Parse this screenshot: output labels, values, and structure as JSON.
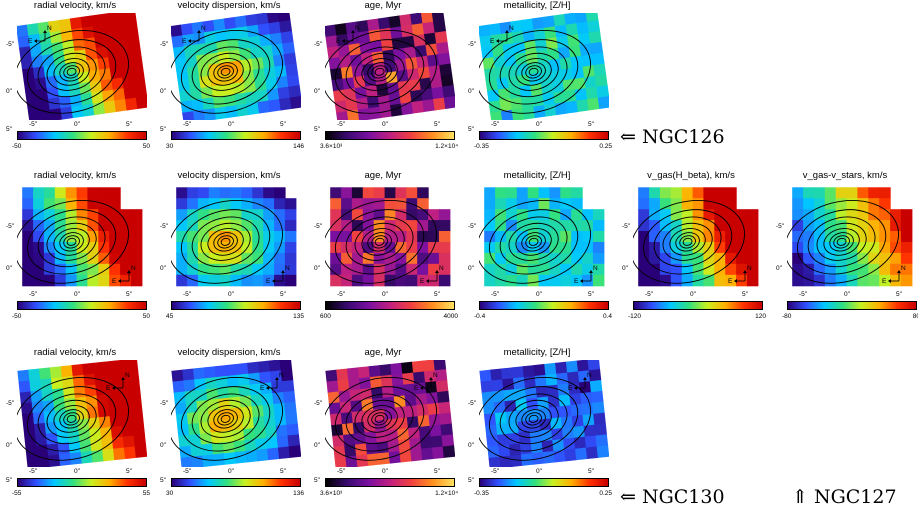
{
  "rows": [
    {
      "panels": [
        {
          "title": "radial velocity, km/s",
          "cmap": "jet",
          "min": "-50",
          "max": "50",
          "y_ticks": [
            "-5\"",
            "0\"",
            "5\""
          ],
          "x_ticks": [
            "-5\"",
            "0\"",
            "5\""
          ]
        },
        {
          "title": "velocity dispersion, km/s",
          "cmap": "jet",
          "min": "30",
          "max": "146",
          "y_ticks": [
            "-5\"",
            "0\"",
            "5\""
          ],
          "x_ticks": [
            "-5\"",
            "0\"",
            "5\""
          ]
        },
        {
          "title": "age, Myr",
          "cmap": "gnu",
          "min": "3.6×10³",
          "max": "1.2×10⁴",
          "y_ticks": [
            "-5\"",
            "0\"",
            "5\""
          ],
          "x_ticks": [
            "-5\"",
            "0\"",
            "5\""
          ]
        },
        {
          "title": "metallicity, [Z/H]",
          "cmap": "jet",
          "min": "-0.35",
          "max": "0.25",
          "y_ticks": [
            "-5\"",
            "0\"",
            "5\""
          ],
          "x_ticks": [
            "-5\"",
            "0\"",
            "5\""
          ]
        }
      ]
    },
    {
      "panels": [
        {
          "title": "radial velocity, km/s",
          "cmap": "jet",
          "min": "-50",
          "max": "50",
          "y_ticks": [
            "-5\"",
            "0\""
          ],
          "x_ticks": [
            "-5\"",
            "0\"",
            "5\""
          ]
        },
        {
          "title": "velocity dispersion, km/s",
          "cmap": "jet",
          "min": "45",
          "max": "135",
          "y_ticks": [
            "-5\"",
            "0\""
          ],
          "x_ticks": [
            "-5\"",
            "0\"",
            "5\""
          ]
        },
        {
          "title": "age, Myr",
          "cmap": "gnu",
          "min": "600",
          "max": "4000",
          "y_ticks": [
            "-5\"",
            "0\""
          ],
          "x_ticks": [
            "-5\"",
            "0\"",
            "5\""
          ]
        },
        {
          "title": "metallicity, [Z/H]",
          "cmap": "jet",
          "min": "-0.4",
          "max": "0.4",
          "y_ticks": [
            "-5\"",
            "0\""
          ],
          "x_ticks": [
            "-5\"",
            "0\"",
            "5\""
          ]
        },
        {
          "title": "v_gas(H_beta), km/s",
          "cmap": "jet",
          "min": "-120",
          "max": "120",
          "y_ticks": [
            "-5\"",
            "0\""
          ],
          "x_ticks": [
            "-5\"",
            "0\"",
            "5\""
          ]
        },
        {
          "title": "v_gas-v_stars, km/s",
          "cmap": "jet",
          "min": "-80",
          "max": "80",
          "y_ticks": [
            "-5\"",
            "0\""
          ],
          "x_ticks": [
            "-5\"",
            "0\"",
            "5\""
          ]
        }
      ]
    },
    {
      "panels": [
        {
          "title": "radial velocity, km/s",
          "cmap": "jet",
          "min": "-55",
          "max": "55",
          "y_ticks": [
            "-5\"",
            "0\"",
            "5\""
          ],
          "x_ticks": [
            "-5\"",
            "0\"",
            "5\""
          ]
        },
        {
          "title": "velocity dispersion, km/s",
          "cmap": "jet",
          "min": "30",
          "max": "136",
          "y_ticks": [
            "-5\"",
            "0\"",
            "5\""
          ],
          "x_ticks": [
            "-5\"",
            "0\"",
            "5\""
          ]
        },
        {
          "title": "age, Myr",
          "cmap": "gnu",
          "min": "3.6×10³",
          "max": "1.2×10⁴",
          "y_ticks": [
            "-5\"",
            "0\"",
            "5\""
          ],
          "x_ticks": [
            "-5\"",
            "0\"",
            "5\""
          ]
        },
        {
          "title": "metallicity, [Z/H]",
          "cmap": "jet",
          "min": "-0.35",
          "max": "0.25",
          "y_ticks": [
            "-5\"",
            "0\"",
            "5\""
          ],
          "x_ticks": [
            "-5\"",
            "0\"",
            "5\""
          ]
        }
      ]
    }
  ],
  "compass": {
    "north": "N",
    "east": "E"
  },
  "labels": {
    "ngc126": "⇐ NGC126",
    "ngc130": "⇐ NGC130",
    "ngc127": "⇑ NGC127"
  },
  "colors": {
    "contour": "#000000",
    "background": "#ffffff"
  }
}
